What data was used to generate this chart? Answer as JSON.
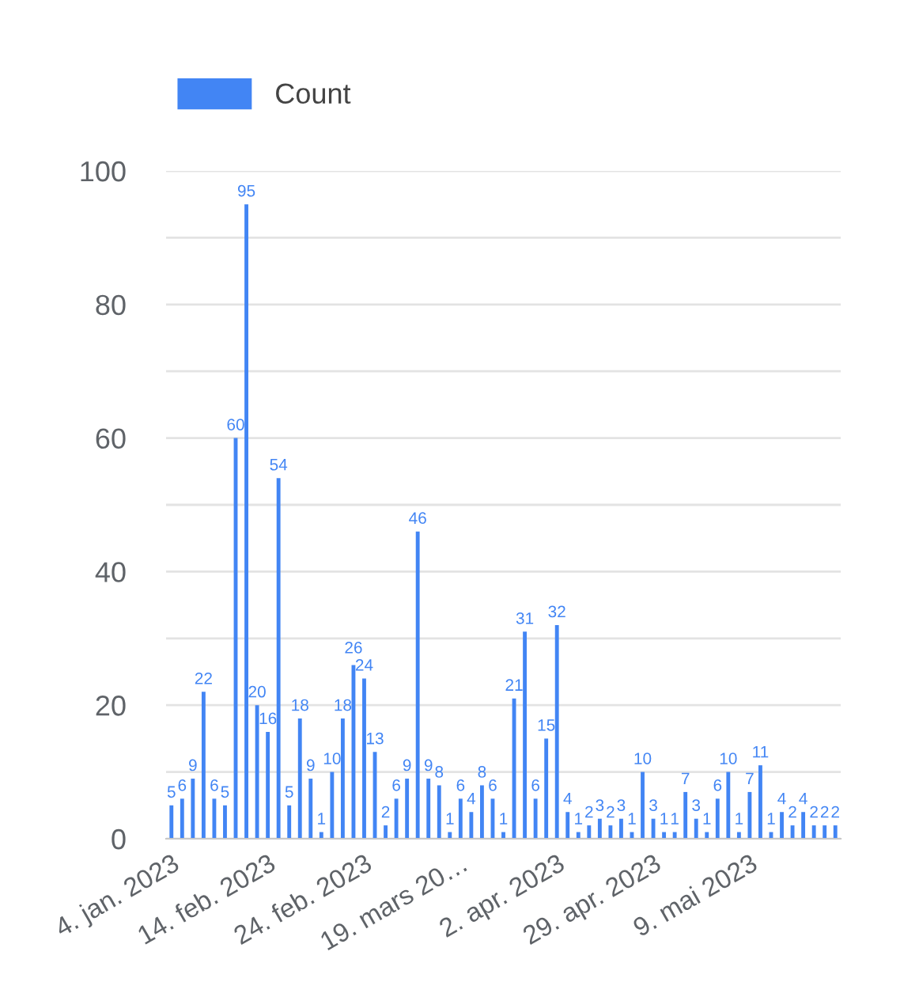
{
  "chart_data": {
    "type": "bar",
    "categories": [
      "4. jan. 2023",
      null,
      null,
      null,
      null,
      null,
      null,
      null,
      null,
      "14. feb. 2023",
      null,
      null,
      null,
      null,
      null,
      null,
      null,
      null,
      "24. feb. 2023",
      null,
      null,
      null,
      null,
      null,
      null,
      null,
      null,
      "19. mars 20…",
      null,
      null,
      null,
      null,
      null,
      null,
      null,
      null,
      "2. apr. 2023",
      null,
      null,
      null,
      null,
      null,
      null,
      null,
      null,
      "29. apr. 2023",
      null,
      null,
      null,
      null,
      null,
      null,
      null,
      null,
      "9. mai 2023",
      null,
      null,
      null,
      null,
      null,
      null,
      null,
      null
    ],
    "series": [
      {
        "name": "Count",
        "color": "#4285f4",
        "values": [
          5,
          6,
          9,
          22,
          6,
          5,
          60,
          95,
          20,
          16,
          54,
          5,
          18,
          9,
          1,
          10,
          18,
          26,
          24,
          13,
          2,
          6,
          9,
          46,
          9,
          8,
          1,
          6,
          4,
          8,
          6,
          1,
          21,
          31,
          6,
          15,
          32,
          4,
          1,
          2,
          3,
          2,
          3,
          1,
          10,
          3,
          1,
          1,
          7,
          3,
          1,
          6,
          10,
          1,
          7,
          11,
          1,
          4,
          2,
          4,
          2,
          2,
          2
        ]
      }
    ],
    "ylim": [
      0,
      100
    ],
    "yticks": [
      0,
      {
        "value": 10,
        "label": null
      },
      20,
      {
        "value": 30,
        "label": null
      },
      40,
      {
        "value": 50,
        "label": null
      },
      60,
      {
        "value": 70,
        "label": null
      },
      80,
      {
        "value": 90,
        "label": null
      },
      100
    ],
    "grid": "y",
    "legend": "top left",
    "data_labels": true
  }
}
